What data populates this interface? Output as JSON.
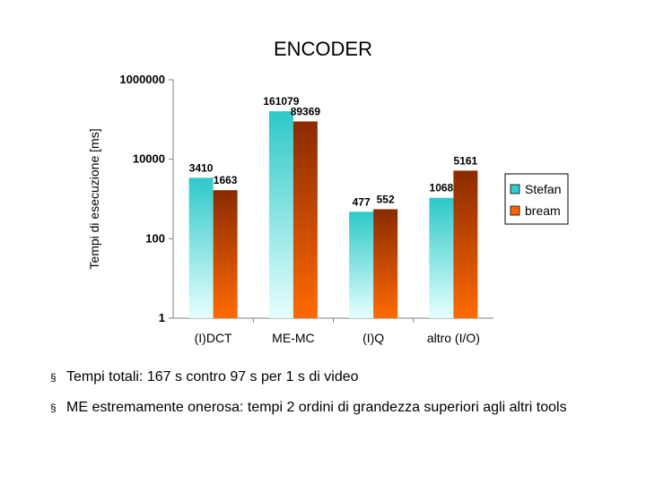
{
  "slide": {
    "title": "ENCODER",
    "bullet_marker": "§",
    "bullets": [
      "Tempi totali: 167 s contro 97 s per 1 s di video",
      "ME estremamente onerosa: tempi 2 ordini di grandezza superiori agli altri tools"
    ]
  },
  "chart_data": {
    "type": "bar",
    "title": "",
    "xlabel": "",
    "ylabel": "Tempi di esecuzione [ms]",
    "yscale": "log",
    "ylim": [
      1,
      1000000
    ],
    "yticks": [
      "1",
      "100",
      "10000",
      "1000000"
    ],
    "grid": false,
    "legend_position": "right",
    "categories": [
      "(I)DCT",
      "ME-MC",
      "(I)Q",
      "altro (I/O)"
    ],
    "series": [
      {
        "name": "Stefan",
        "values": [
          3410,
          161079,
          477,
          1068
        ],
        "labels": [
          "3410",
          "161079",
          "477",
          "1068"
        ],
        "color": "#33cccc"
      },
      {
        "name": "bream",
        "values": [
          1663,
          89369,
          552,
          5161
        ],
        "labels": [
          "1663",
          "89369",
          "552",
          "5161"
        ],
        "color": "#ff6600"
      }
    ]
  }
}
